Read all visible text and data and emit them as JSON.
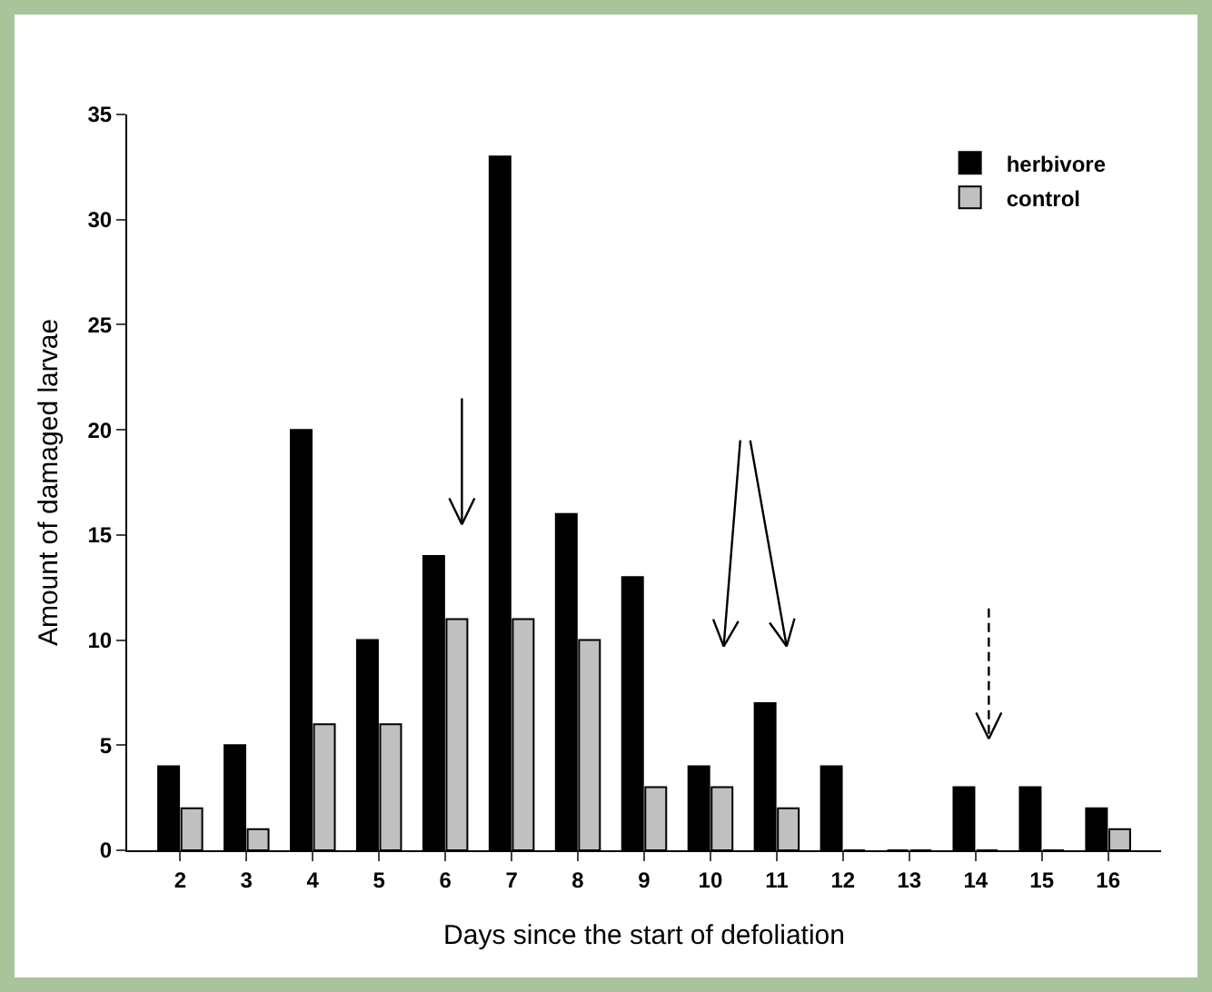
{
  "chart_data": {
    "type": "bar",
    "xlabel": "Days since the start of defoliation",
    "ylabel": "Amount of damaged larvae",
    "categories": [
      "2",
      "3",
      "4",
      "5",
      "6",
      "7",
      "8",
      "9",
      "10",
      "11",
      "12",
      "13",
      "14",
      "15",
      "16"
    ],
    "series": [
      {
        "name": "herbivore",
        "color": "#000000",
        "values": [
          4,
          5,
          20,
          10,
          14,
          33,
          16,
          13,
          4,
          7,
          4,
          0,
          3,
          3,
          2
        ]
      },
      {
        "name": "control",
        "color": "#c0c0c0",
        "values": [
          2,
          1,
          6,
          6,
          11,
          11,
          10,
          3,
          3,
          2,
          0,
          0,
          0,
          0,
          1
        ]
      }
    ],
    "ylim": [
      0,
      35
    ],
    "yticks": [
      0,
      5,
      10,
      15,
      20,
      25,
      30,
      35
    ],
    "grid": false,
    "legend": "top right"
  }
}
